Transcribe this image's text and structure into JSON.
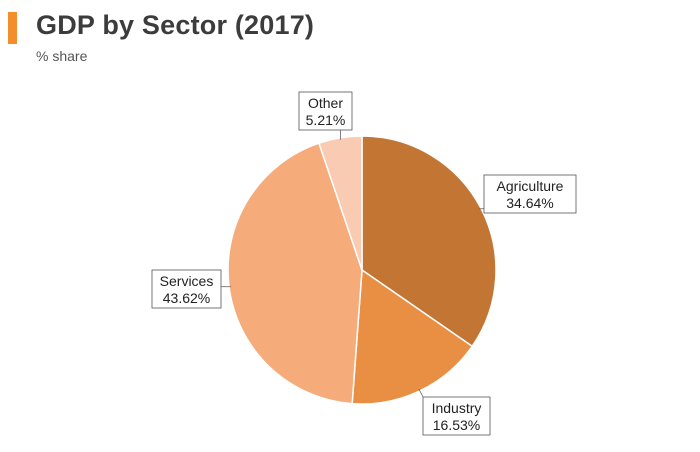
{
  "header": {
    "title": "GDP by Sector (2017)",
    "subtitle": "% share",
    "accent_color": "#f28e2b"
  },
  "chart_data": {
    "type": "pie",
    "title": "GDP by Sector (2017)",
    "subtitle": "% share",
    "start": "12 o'clock",
    "direction": "clockwise",
    "slices": [
      {
        "label": "Agriculture",
        "value": 34.64,
        "display": "34.64%",
        "color": "#c37534"
      },
      {
        "label": "Industry",
        "value": 16.53,
        "display": "16.53%",
        "color": "#e98f43"
      },
      {
        "label": "Services",
        "value": 43.62,
        "display": "43.62%",
        "color": "#f6ab7b"
      },
      {
        "label": "Other",
        "value": 5.21,
        "display": "5.21%",
        "color": "#f9cbb2"
      }
    ]
  }
}
